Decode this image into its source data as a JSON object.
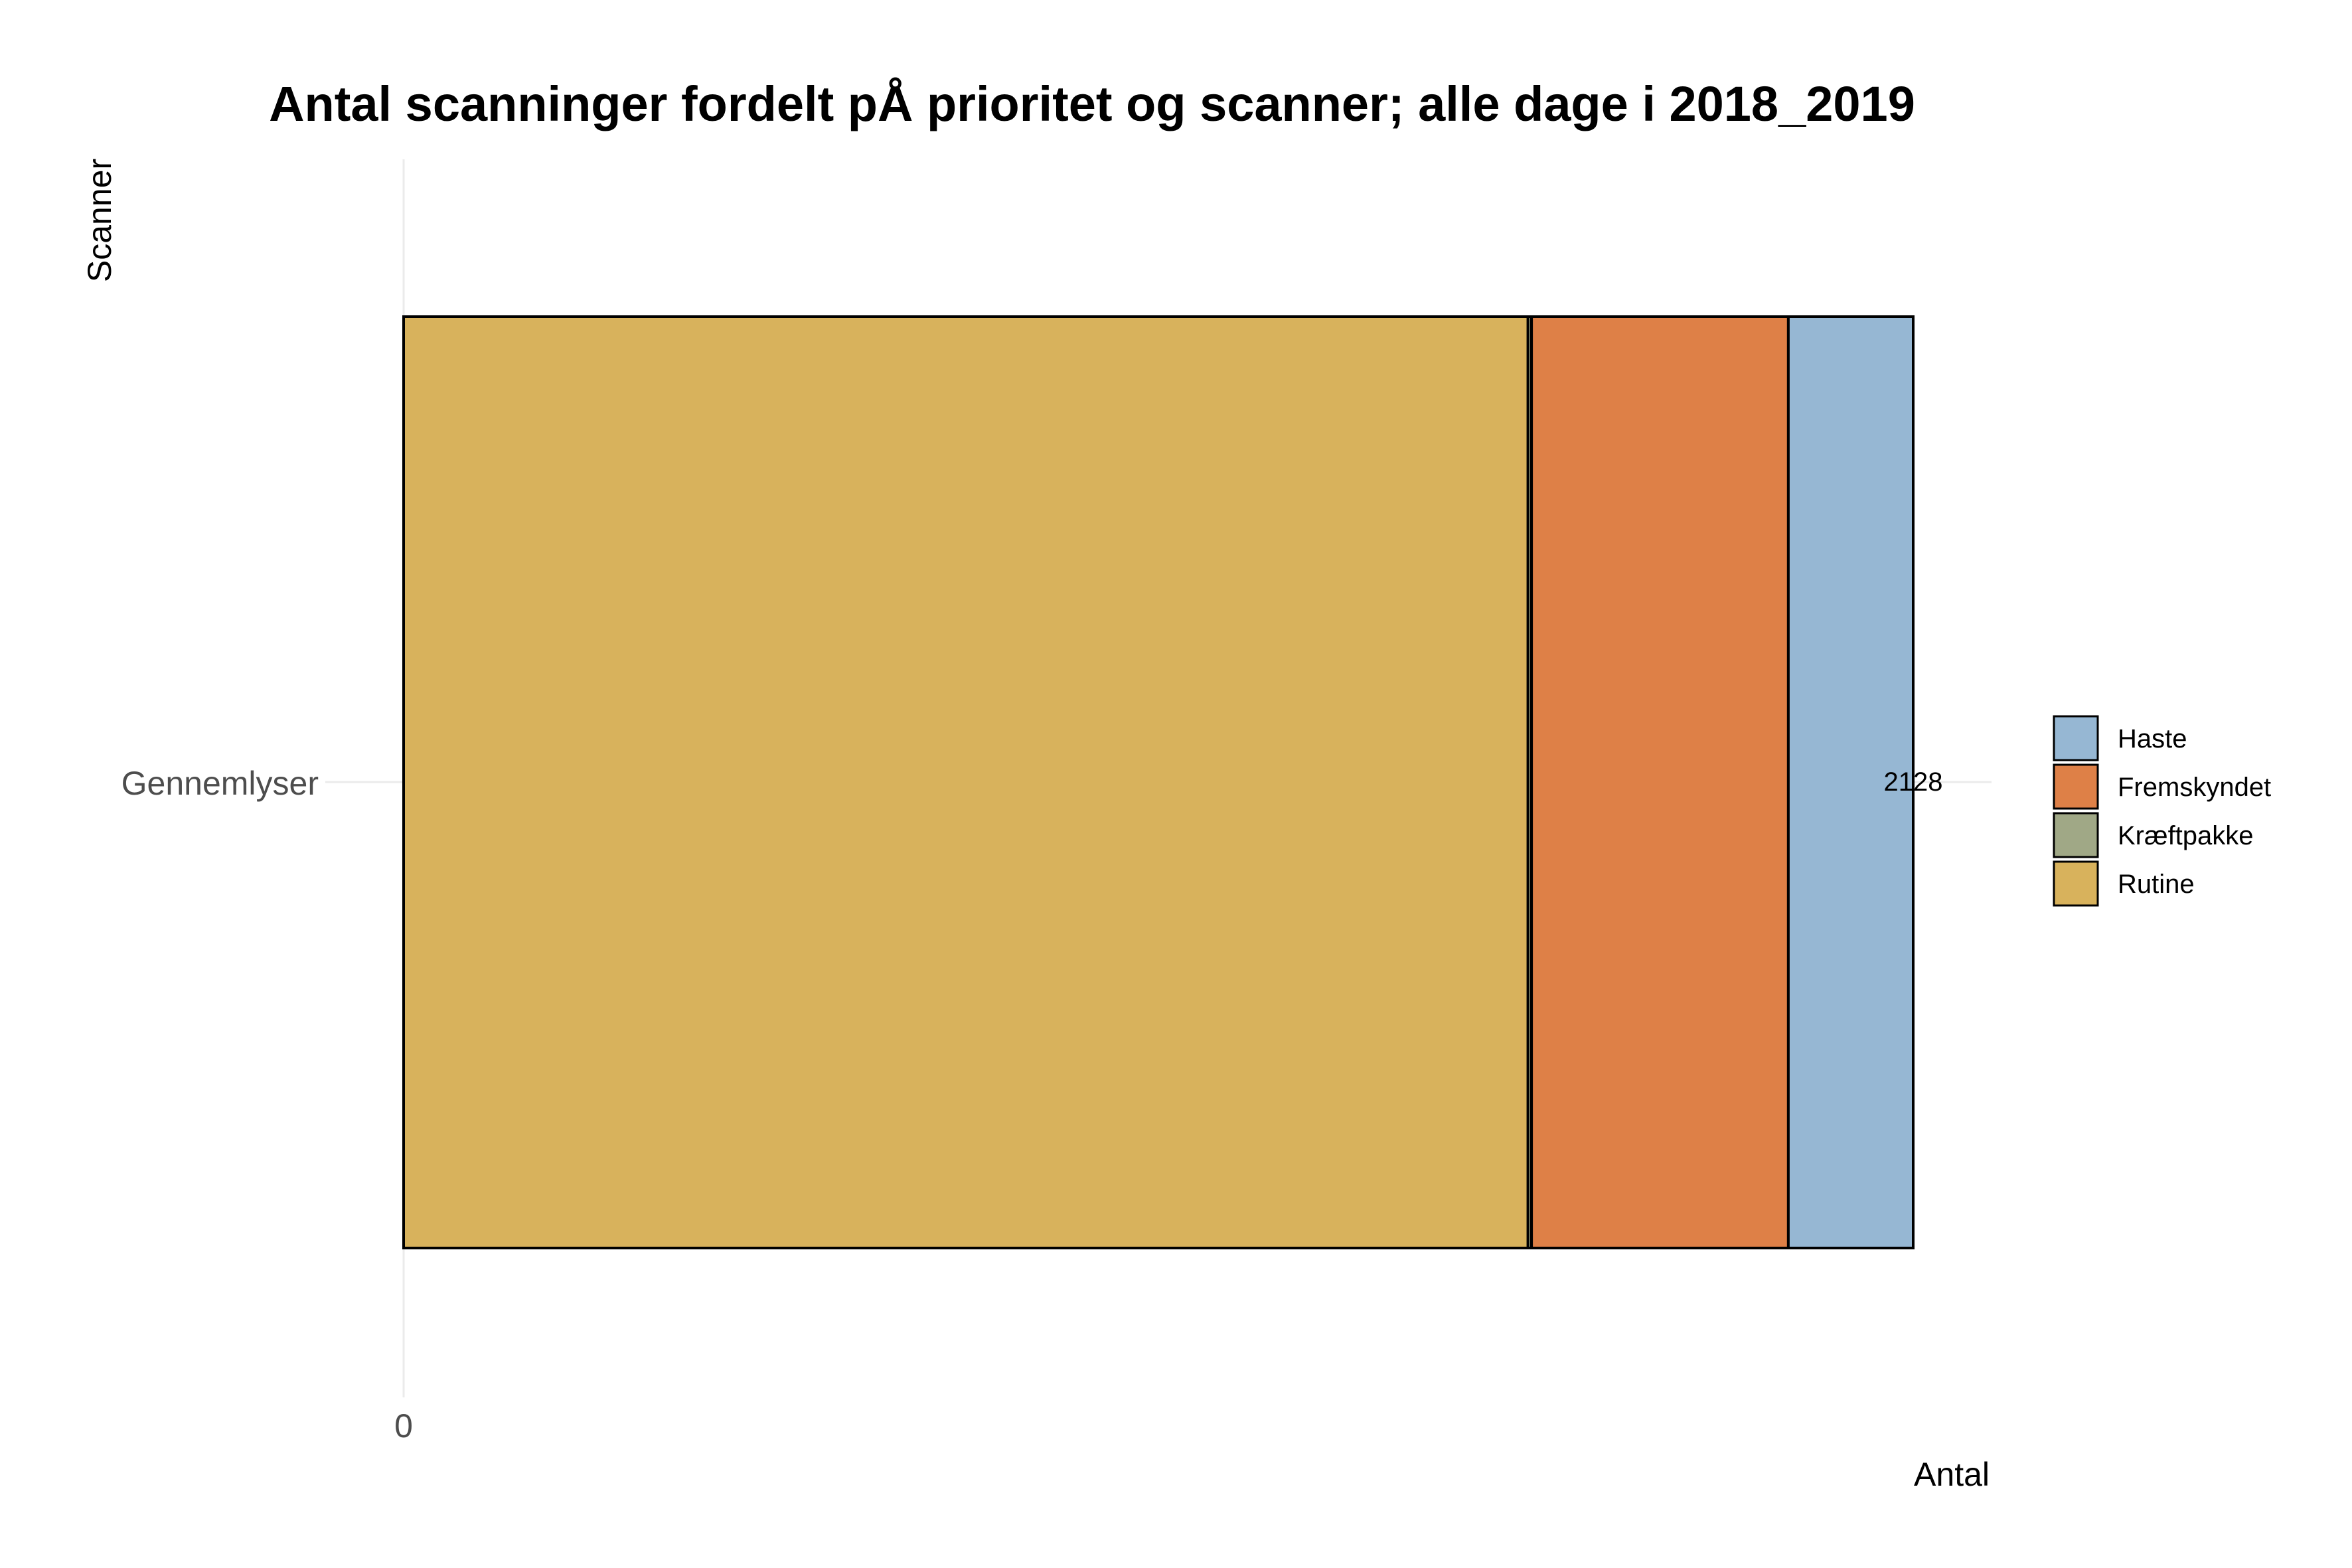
{
  "chart_data": {
    "type": "bar",
    "orientation": "horizontal",
    "stacked": true,
    "title": "Antal scanninger fordelt pÅ prioritet og scanner; alle dage i 2018_2019",
    "xlabel": "Antal",
    "ylabel": "Scanner",
    "categories": [
      "Gennemlyser"
    ],
    "x_ticks": [
      "0"
    ],
    "xlim": [
      0,
      2128
    ],
    "grid": true,
    "legend_position": "right",
    "series": [
      {
        "name": "Rutine",
        "values": [
          1585
        ],
        "color": "#D8B25C"
      },
      {
        "name": "Kræftpakke",
        "values": [
          5
        ],
        "color": "#A0A886"
      },
      {
        "name": "Fremskyndet",
        "values": [
          362
        ],
        "color": "#DE8047"
      },
      {
        "name": "Haste",
        "values": [
          176
        ],
        "color": "#96B7D3"
      }
    ],
    "legend_order": [
      "Haste",
      "Fremskyndet",
      "Kræftpakke",
      "Rutine"
    ],
    "totals": [
      "2128"
    ]
  }
}
